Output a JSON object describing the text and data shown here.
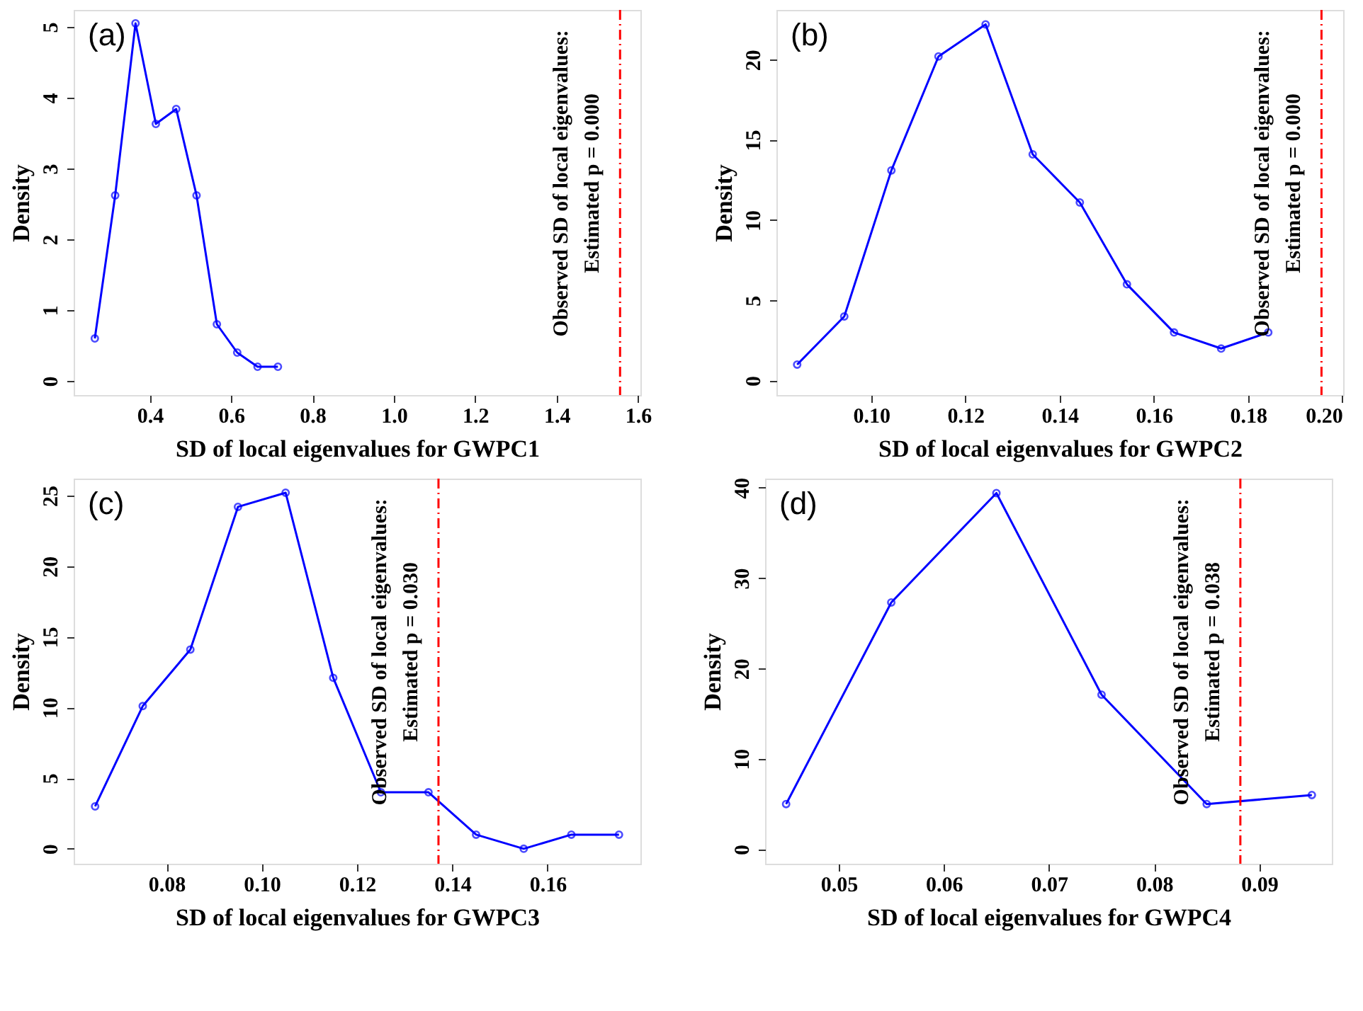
{
  "chart_data": [
    {
      "type": "line",
      "xlabel": "SD of local eigenvalues for GWPC1",
      "ylabel": "Density",
      "annotations": [
        "(a)",
        "Observed SD of local eigenvalues:\nEstimated p = 0.000"
      ],
      "marker": "circle",
      "grid": false,
      "x": [
        0.265,
        0.315,
        0.365,
        0.415,
        0.465,
        0.515,
        0.565,
        0.615,
        0.665,
        0.715
      ],
      "series": [
        {
          "color": "#0000ff",
          "values": [
            0.6,
            2.62,
            5.05,
            3.63,
            3.84,
            2.62,
            0.8,
            0.4,
            0.2,
            0.2
          ]
        }
      ],
      "xlim": [
        0.213,
        1.606
      ],
      "xticks": [
        0.4,
        0.6,
        0.8,
        {
          "value": 1.0,
          "label": "1.0"
        },
        1.2,
        1.4,
        1.6
      ],
      "ylim": [
        -0.2,
        5.24
      ],
      "yticks": [
        0,
        1,
        2,
        3,
        4,
        5
      ],
      "ref_lines": [
        {
          "axis": "x",
          "value": 1.556,
          "color": "#ff0000",
          "line_style": "dashed"
        }
      ]
    },
    {
      "type": "line",
      "xlabel": "SD of local eigenvalues for GWPC2",
      "ylabel": "Density",
      "annotations": [
        "(b)",
        "Observed SD of local eigenvalues:\nEstimated p = 0.000"
      ],
      "marker": "circle",
      "grid": false,
      "x": [
        0.0843,
        0.0943,
        0.1043,
        0.1143,
        0.1243,
        0.1343,
        0.1443,
        0.1543,
        0.1643,
        0.1743,
        0.1843
      ],
      "series": [
        {
          "color": "#0000ff",
          "values": [
            1.0,
            4.0,
            13.1,
            20.2,
            22.2,
            14.1,
            11.1,
            6.0,
            3.0,
            2.0,
            3.0
          ]
        }
      ],
      "xlim": [
        0.0799,
        0.2002
      ],
      "xticks": [
        {
          "value": 0.1,
          "label": "0.10"
        },
        0.12,
        0.14,
        0.16,
        0.18,
        {
          "value": 0.2,
          "label": "0.20"
        }
      ],
      "ylim": [
        -0.9,
        23.1
      ],
      "yticks": [
        0,
        5,
        10,
        15,
        20
      ],
      "ref_lines": [
        {
          "axis": "x",
          "value": 0.1956,
          "color": "#ff0000",
          "line_style": "dashed"
        }
      ]
    },
    {
      "type": "line",
      "xlabel": "SD of local eigenvalues for GWPC3",
      "ylabel": "Density",
      "annotations": [
        "(c)",
        "Observed SD of local eigenvalues:\nEstimated p = 0.030"
      ],
      "marker": "circle",
      "grid": false,
      "x": [
        0.065,
        0.075,
        0.085,
        0.095,
        0.105,
        0.115,
        0.125,
        0.135,
        0.145,
        0.155,
        0.165,
        0.175
      ],
      "series": [
        {
          "color": "#0000ff",
          "values": [
            3.0,
            10.1,
            14.1,
            24.2,
            25.2,
            12.1,
            4.0,
            4.0,
            1.0,
            0.0,
            1.0,
            1.0
          ]
        }
      ],
      "xlim": [
        0.0605,
        0.1795
      ],
      "xticks": [
        0.08,
        {
          "value": 0.1,
          "label": "0.10"
        },
        0.12,
        0.14,
        0.16
      ],
      "ylim": [
        -1.06,
        26.2
      ],
      "yticks": [
        0,
        5,
        10,
        15,
        20,
        25
      ],
      "ref_lines": [
        {
          "axis": "x",
          "value": 0.1371,
          "color": "#ff0000",
          "line_style": "dashed"
        }
      ]
    },
    {
      "type": "line",
      "xlabel": "SD of local eigenvalues for GWPC4",
      "ylabel": "Density",
      "annotations": [
        "(d)",
        "Observed SD of local eigenvalues:\nEstimated p = 0.038"
      ],
      "marker": "circle",
      "grid": false,
      "x": [
        0.045,
        0.055,
        0.065,
        0.075,
        0.085,
        0.095
      ],
      "series": [
        {
          "color": "#0000ff",
          "values": [
            5.0,
            27.3,
            39.4,
            17.1,
            5.0,
            6.0
          ]
        }
      ],
      "xlim": [
        0.043,
        0.0969
      ],
      "xticks": [
        0.05,
        0.06,
        0.07,
        0.08,
        0.09
      ],
      "ylim": [
        -1.6,
        41.0
      ],
      "yticks": [
        0,
        10,
        20,
        30,
        40
      ],
      "ref_lines": [
        {
          "axis": "x",
          "value": 0.0882,
          "color": "#ff0000",
          "line_style": "dashed"
        }
      ]
    }
  ]
}
